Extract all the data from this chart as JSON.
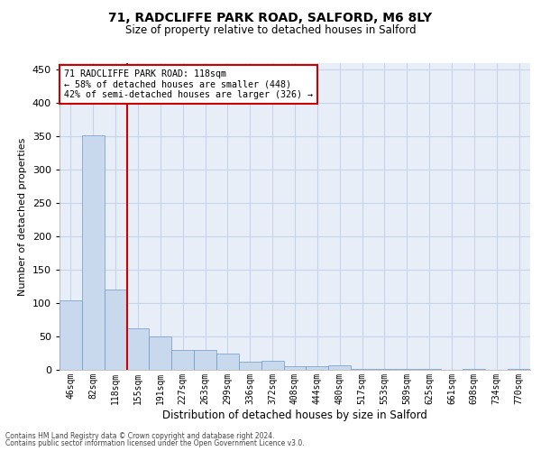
{
  "title1": "71, RADCLIFFE PARK ROAD, SALFORD, M6 8LY",
  "title2": "Size of property relative to detached houses in Salford",
  "xlabel": "Distribution of detached houses by size in Salford",
  "ylabel": "Number of detached properties",
  "categories": [
    "46sqm",
    "82sqm",
    "118sqm",
    "155sqm",
    "191sqm",
    "227sqm",
    "263sqm",
    "299sqm",
    "336sqm",
    "372sqm",
    "408sqm",
    "444sqm",
    "480sqm",
    "517sqm",
    "553sqm",
    "589sqm",
    "625sqm",
    "661sqm",
    "698sqm",
    "734sqm",
    "770sqm"
  ],
  "values": [
    104,
    352,
    120,
    62,
    50,
    30,
    30,
    25,
    12,
    13,
    6,
    6,
    7,
    2,
    2,
    2,
    1,
    0,
    1,
    0,
    2
  ],
  "bar_color": "#c8d9ee",
  "bar_edge_color": "#7097c8",
  "highlight_index": 2,
  "highlight_line_color": "#cc0000",
  "annotation_line1": "71 RADCLIFFE PARK ROAD: 118sqm",
  "annotation_line2": "← 58% of detached houses are smaller (448)",
  "annotation_line3": "42% of semi-detached houses are larger (326) →",
  "annotation_box_color": "#ffffff",
  "annotation_box_edge": "#cc0000",
  "ylim": [
    0,
    460
  ],
  "yticks": [
    0,
    50,
    100,
    150,
    200,
    250,
    300,
    350,
    400,
    450
  ],
  "footer1": "Contains HM Land Registry data © Crown copyright and database right 2024.",
  "footer2": "Contains public sector information licensed under the Open Government Licence v3.0.",
  "grid_color": "#c8d4e8",
  "background_color": "#e8eef8"
}
